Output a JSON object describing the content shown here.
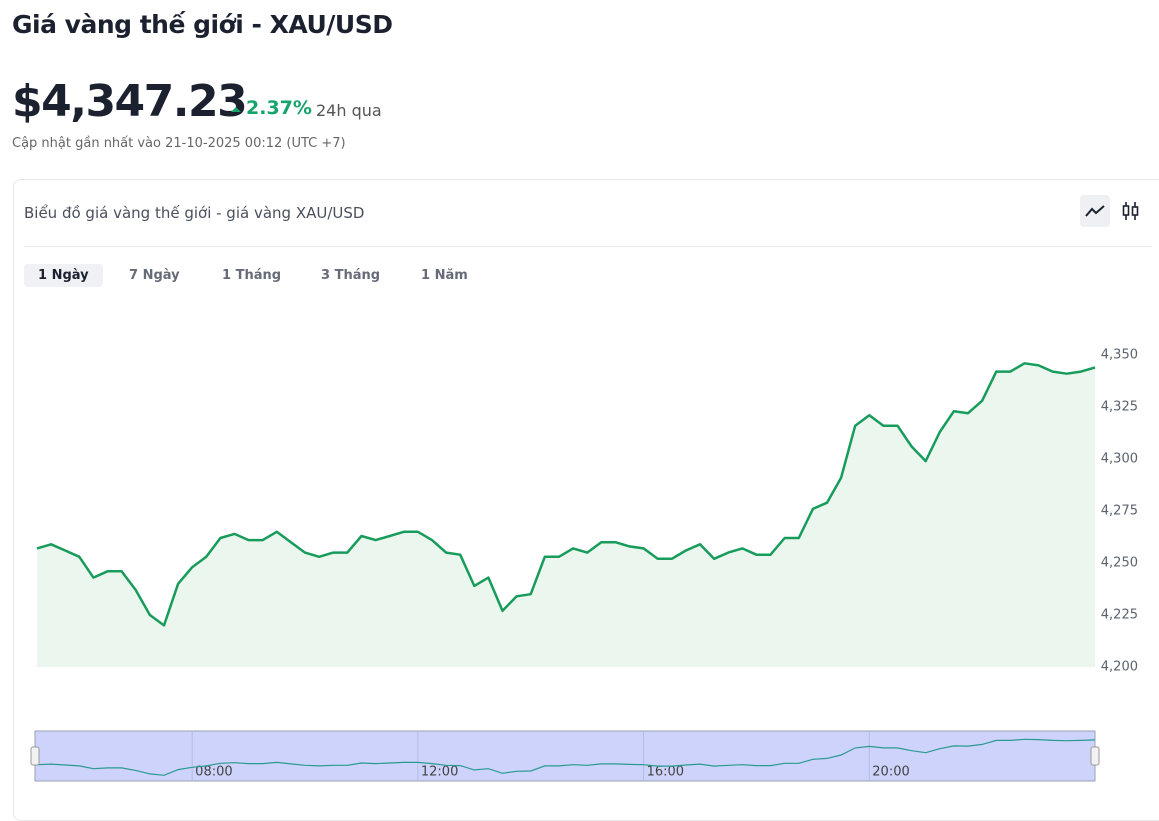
{
  "header": {
    "title": "Giá vàng thế giới - XAU/USD"
  },
  "price": {
    "value": "$4,347.23",
    "change": "2.37%",
    "period": "24h qua",
    "updated": "Cập nhật gần nhất vào 21-10-2025 00:12 (UTC +7)"
  },
  "card": {
    "title": "Biểu đồ giá vàng thế giới - giá vàng XAU/USD",
    "tabs": [
      "1 Ngày",
      "7 Ngày",
      "1 Tháng",
      "3 Tháng",
      "1 Năm"
    ]
  },
  "chart_data": {
    "type": "area",
    "color": "#179c5b",
    "fill": "#ebf6ef",
    "navigator_color": "#2b9a8e",
    "x": [
      5.25,
      5.5,
      5.75,
      6,
      6.25,
      6.5,
      6.75,
      7,
      7.25,
      7.5,
      7.75,
      8,
      8.25,
      8.5,
      8.75,
      9,
      9.25,
      9.5,
      9.75,
      10,
      10.25,
      10.5,
      10.75,
      11,
      11.25,
      11.5,
      11.75,
      12,
      12.25,
      12.5,
      12.75,
      13,
      13.25,
      13.5,
      13.75,
      14,
      14.25,
      14.5,
      14.75,
      15,
      15.25,
      15.5,
      15.75,
      16,
      16.25,
      16.5,
      16.75,
      17,
      17.25,
      17.5,
      17.75,
      18,
      18.25,
      18.5,
      18.75,
      19,
      19.25,
      19.5,
      19.75,
      20,
      20.25,
      20.5,
      20.75,
      21,
      21.25,
      21.5,
      21.75,
      22,
      22.25,
      22.5,
      22.75,
      23,
      23.25,
      23.5,
      23.75,
      24
    ],
    "values": [
      4257,
      4259,
      4256,
      4253,
      4243,
      4246,
      4246,
      4237,
      4225,
      4220,
      4240,
      4248,
      4253,
      4262,
      4264,
      4261,
      4261,
      4265,
      4260,
      4255,
      4253,
      4255,
      4255,
      4263,
      4261,
      4263,
      4265,
      4265,
      4261,
      4255,
      4254,
      4239,
      4243,
      4227,
      4234,
      4235,
      4253,
      4253,
      4257,
      4255,
      4260,
      4260,
      4258,
      4257,
      4252,
      4252,
      4256,
      4259,
      4252,
      4255,
      4257,
      4254,
      4254,
      4262,
      4262,
      4276,
      4279,
      4291,
      4316,
      4321,
      4316,
      4316,
      4306,
      4299,
      4313,
      4323,
      4322,
      4328,
      4342,
      4342,
      4346,
      4345,
      4342,
      4341,
      4342,
      4344
    ],
    "xlim": [
      5.25,
      24
    ],
    "xticks": [
      {
        "value": 8,
        "label": "08:00"
      },
      {
        "value": 12,
        "label": "12:00"
      },
      {
        "value": 16,
        "label": "16:00"
      },
      {
        "value": 20,
        "label": "20:00"
      }
    ],
    "ylim": [
      4200,
      4375
    ],
    "yticks": [
      {
        "value": 4200,
        "label": "4,200"
      },
      {
        "value": 4225,
        "label": "4,225"
      },
      {
        "value": 4250,
        "label": "4,250"
      },
      {
        "value": 4275,
        "label": "4,275"
      },
      {
        "value": 4300,
        "label": "4,300"
      },
      {
        "value": 4325,
        "label": "4,325"
      },
      {
        "value": 4350,
        "label": "4,350"
      }
    ],
    "grid": false
  }
}
